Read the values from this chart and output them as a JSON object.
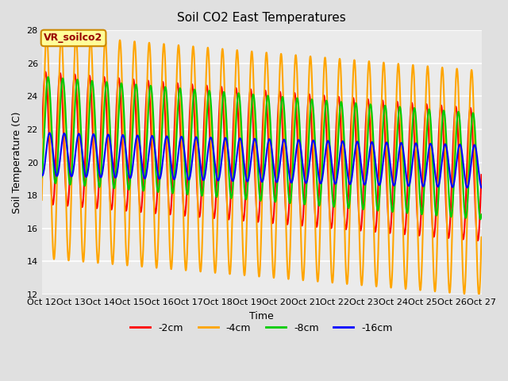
{
  "title": "Soil CO2 East Temperatures",
  "xlabel": "Time",
  "ylabel": "Soil Temperature (C)",
  "ylim": [
    12,
    28
  ],
  "xlim_days": [
    0,
    15
  ],
  "tick_labels": [
    "Oct 12",
    "Oct 13",
    "Oct 14",
    "Oct 15",
    "Oct 16",
    "Oct 17",
    "Oct 18",
    "Oct 19",
    "Oct 20",
    "Oct 21",
    "Oct 22",
    "Oct 23",
    "Oct 24",
    "Oct 25",
    "Oct 26",
    "Oct 27"
  ],
  "yticks": [
    12,
    14,
    16,
    18,
    20,
    22,
    24,
    26,
    28
  ],
  "series_order": [
    "-2cm",
    "-4cm",
    "-8cm",
    "-16cm"
  ],
  "series": {
    "-2cm": {
      "color": "#ff0000",
      "amplitude": 4.0,
      "mean": 21.5,
      "phase": 0.0,
      "period": 0.5,
      "trend": -0.15
    },
    "-4cm": {
      "color": "#ffa500",
      "amplitude": 6.8,
      "mean": 21.0,
      "phase": 0.08,
      "period": 0.5,
      "trend": -0.15
    },
    "-8cm": {
      "color": "#00cc00",
      "amplitude": 3.2,
      "mean": 22.0,
      "phase": 0.18,
      "period": 0.5,
      "trend": -0.15
    },
    "-16cm": {
      "color": "#0000ff",
      "amplitude": 1.3,
      "mean": 20.5,
      "phase": 0.28,
      "period": 0.5,
      "trend": -0.05
    }
  },
  "legend_labels": [
    "-2cm",
    "-4cm",
    "-8cm",
    "-16cm"
  ],
  "legend_colors": [
    "#ff0000",
    "#ffa500",
    "#00cc00",
    "#0000ff"
  ],
  "annotation_text": "VR_soilco2",
  "annotation_color": "#990000",
  "annotation_bg": "#ffff99",
  "annotation_border": "#cc8800",
  "bg_color": "#e0e0e0",
  "plot_bg": "#ebebeb",
  "title_fontsize": 11,
  "label_fontsize": 9,
  "tick_fontsize": 8,
  "legend_fontsize": 9,
  "linewidth": 1.5
}
